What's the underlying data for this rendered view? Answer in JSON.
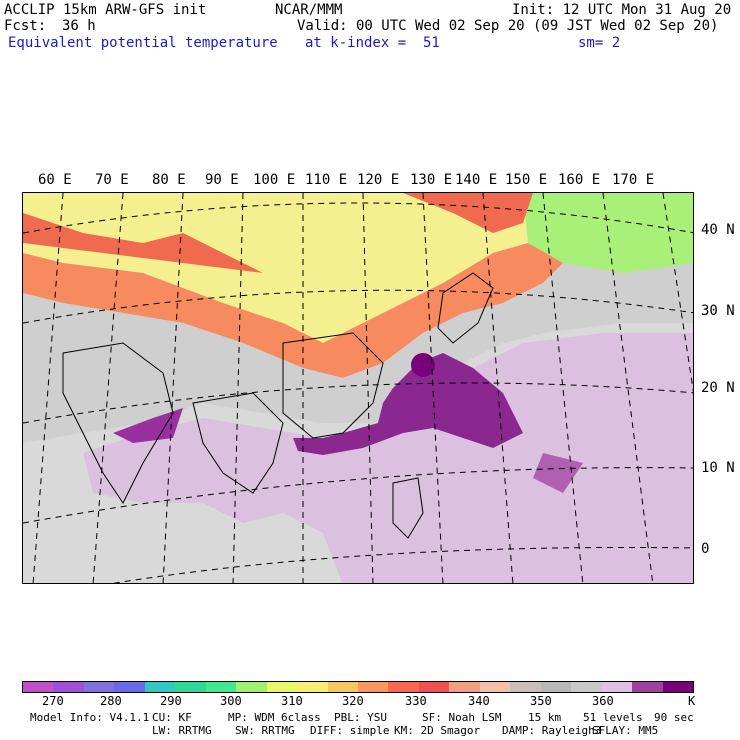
{
  "header": {
    "model": "ACCLIP 15km ARW-GFS init",
    "org": "NCAR/MMM",
    "init": "Init: 12 UTC Mon 31 Aug 20",
    "fcst_label": "Fcst:",
    "fcst_value": "36 h",
    "valid": "Valid: 00 UTC Wed 02 Sep 20 (09 JST Wed 02 Sep 20)",
    "field": "Equivalent potential temperature",
    "level": "at k-index =  51",
    "smoothing": "sm= 2"
  },
  "map": {
    "lon_labels": [
      "60 E",
      "70 E",
      "80 E",
      "90 E",
      "100 E",
      "110 E",
      "120 E",
      "130 E",
      "140 E",
      "150 E",
      "160 E",
      "170 E"
    ],
    "lat_labels": [
      "40 N",
      "30 N",
      "20 N",
      "10 N",
      "0"
    ]
  },
  "colorbar": {
    "colors": [
      "#c050c8",
      "#a050d8",
      "#8070e0",
      "#6a6ae8",
      "#30c8c0",
      "#30d898",
      "#40e890",
      "#a0f070",
      "#e8f868",
      "#f8f070",
      "#f8c860",
      "#f89860",
      "#f86850",
      "#f05050",
      "#f0a080",
      "#f0c0a8",
      "#c8c0b8",
      "#b8b8b8",
      "#c8c8c8",
      "#e0c0e0",
      "#a040a0",
      "#780078"
    ],
    "tick_labels": [
      "270",
      "280",
      "290",
      "300",
      "310",
      "320",
      "330",
      "340",
      "350",
      "360"
    ],
    "unit": "K"
  },
  "footer": {
    "line1": [
      "Model Info: V4.1.1",
      "CU: KF",
      "MP: WDM 6class",
      "PBL: YSU",
      "SF: Noah LSM",
      "15 km",
      "51 levels",
      "90 sec"
    ],
    "line2": [
      "LW: RRTMG",
      "SW: RRTMG",
      "DIFF: simple",
      "KM: 2D Smagor",
      "DAMP: Rayleigh3",
      "SFLAY: MM5"
    ]
  }
}
